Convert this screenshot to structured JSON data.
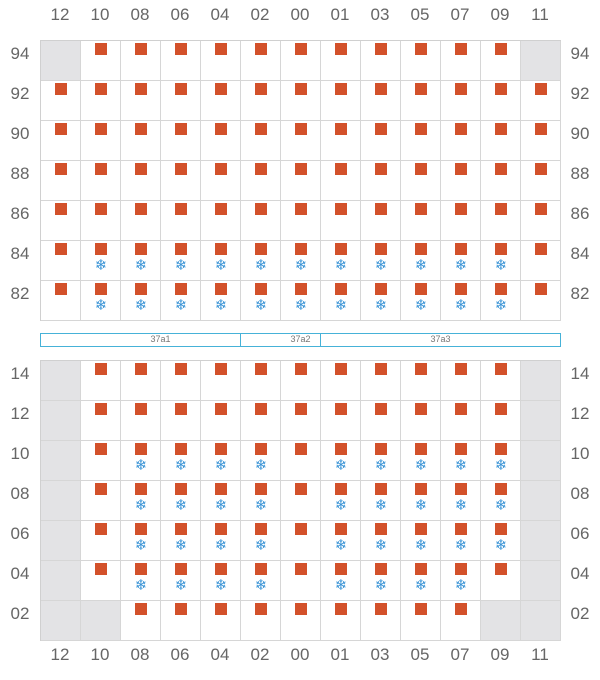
{
  "colors": {
    "container": "#d3512a",
    "reefer": "#3a94d6",
    "hatch_border": "#46b2d8",
    "blocked_cell": "#e3e3e5",
    "label_text": "#666666"
  },
  "icons": {
    "container": "square-icon",
    "reefer": "snowflake-icon"
  },
  "reefer_glyph": "❄",
  "columns": [
    "12",
    "10",
    "08",
    "06",
    "04",
    "02",
    "00",
    "01",
    "03",
    "05",
    "07",
    "09",
    "11"
  ],
  "deck": {
    "rows": [
      {
        "label": "94",
        "blocked": [
          "12",
          "11"
        ],
        "filled": [
          "10",
          "08",
          "06",
          "04",
          "02",
          "00",
          "01",
          "03",
          "05",
          "07",
          "09"
        ],
        "reefer": []
      },
      {
        "label": "92",
        "blocked": [],
        "filled": [
          "12",
          "10",
          "08",
          "06",
          "04",
          "02",
          "00",
          "01",
          "03",
          "05",
          "07",
          "09",
          "11"
        ],
        "reefer": []
      },
      {
        "label": "90",
        "blocked": [],
        "filled": [
          "12",
          "10",
          "08",
          "06",
          "04",
          "02",
          "00",
          "01",
          "03",
          "05",
          "07",
          "09",
          "11"
        ],
        "reefer": []
      },
      {
        "label": "88",
        "blocked": [],
        "filled": [
          "12",
          "10",
          "08",
          "06",
          "04",
          "02",
          "00",
          "01",
          "03",
          "05",
          "07",
          "09",
          "11"
        ],
        "reefer": []
      },
      {
        "label": "86",
        "blocked": [],
        "filled": [
          "12",
          "10",
          "08",
          "06",
          "04",
          "02",
          "00",
          "01",
          "03",
          "05",
          "07",
          "09",
          "11"
        ],
        "reefer": []
      },
      {
        "label": "84",
        "blocked": [],
        "filled": [
          "12",
          "10",
          "08",
          "06",
          "04",
          "02",
          "00",
          "01",
          "03",
          "05",
          "07",
          "09",
          "11"
        ],
        "reefer": [
          "10",
          "08",
          "06",
          "04",
          "02",
          "00",
          "01",
          "03",
          "05",
          "07",
          "09"
        ]
      },
      {
        "label": "82",
        "blocked": [],
        "filled": [
          "12",
          "10",
          "08",
          "06",
          "04",
          "02",
          "00",
          "01",
          "03",
          "05",
          "07",
          "09",
          "11"
        ],
        "reefer": [
          "10",
          "08",
          "06",
          "04",
          "02",
          "00",
          "01",
          "03",
          "05",
          "07",
          "09"
        ]
      }
    ]
  },
  "hatch_covers": [
    {
      "label": "37a1",
      "from": "12",
      "to": "02"
    },
    {
      "label": "37a2",
      "from": "02",
      "to": "01"
    },
    {
      "label": "37a3",
      "from": "01",
      "to": "11"
    }
  ],
  "hold": {
    "rows": [
      {
        "label": "14",
        "blocked": [
          "12",
          "11"
        ],
        "filled": [
          "10",
          "08",
          "06",
          "04",
          "02",
          "00",
          "01",
          "03",
          "05",
          "07",
          "09"
        ],
        "reefer": []
      },
      {
        "label": "12",
        "blocked": [
          "12",
          "11"
        ],
        "filled": [
          "10",
          "08",
          "06",
          "04",
          "02",
          "00",
          "01",
          "03",
          "05",
          "07",
          "09"
        ],
        "reefer": []
      },
      {
        "label": "10",
        "blocked": [
          "12",
          "11"
        ],
        "filled": [
          "10",
          "08",
          "06",
          "04",
          "02",
          "00",
          "01",
          "03",
          "05",
          "07",
          "09"
        ],
        "reefer": [
          "08",
          "06",
          "04",
          "02",
          "01",
          "03",
          "05",
          "07",
          "09"
        ]
      },
      {
        "label": "08",
        "blocked": [
          "12",
          "11"
        ],
        "filled": [
          "10",
          "08",
          "06",
          "04",
          "02",
          "00",
          "01",
          "03",
          "05",
          "07",
          "09"
        ],
        "reefer": [
          "08",
          "06",
          "04",
          "02",
          "01",
          "03",
          "05",
          "07",
          "09"
        ]
      },
      {
        "label": "06",
        "blocked": [
          "12",
          "11"
        ],
        "filled": [
          "10",
          "08",
          "06",
          "04",
          "02",
          "00",
          "01",
          "03",
          "05",
          "07",
          "09"
        ],
        "reefer": [
          "08",
          "06",
          "04",
          "02",
          "01",
          "03",
          "05",
          "07",
          "09"
        ]
      },
      {
        "label": "04",
        "blocked": [
          "12",
          "11"
        ],
        "filled": [
          "10",
          "08",
          "06",
          "04",
          "02",
          "00",
          "01",
          "03",
          "05",
          "07",
          "09"
        ],
        "reefer": [
          "08",
          "06",
          "04",
          "02",
          "01",
          "03",
          "05",
          "07"
        ]
      },
      {
        "label": "02",
        "blocked": [
          "12",
          "10",
          "09",
          "11"
        ],
        "filled": [
          "08",
          "06",
          "04",
          "02",
          "00",
          "01",
          "03",
          "05",
          "07"
        ],
        "reefer": []
      }
    ]
  }
}
